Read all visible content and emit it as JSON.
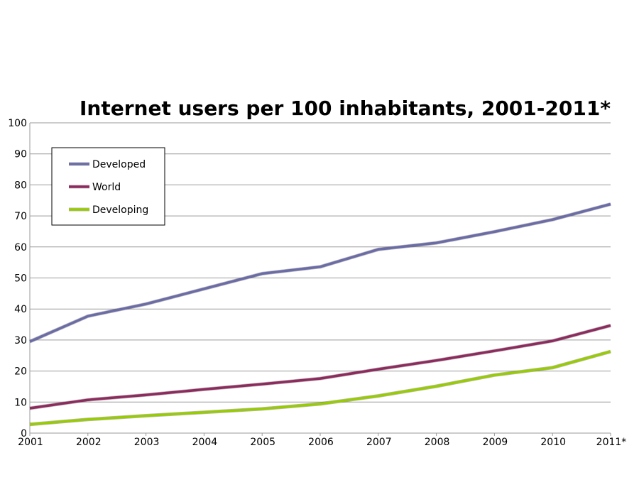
{
  "chart_data": {
    "type": "line",
    "title": "Internet users per 100 inhabitants, 2001-2011*",
    "xlabel": "",
    "ylabel": "",
    "categories": [
      "2001",
      "2002",
      "2003",
      "2004",
      "2005",
      "2006",
      "2007",
      "2008",
      "2009",
      "2010",
      "2011*"
    ],
    "ylim": [
      0,
      100
    ],
    "yticks": [
      "0",
      "10",
      "20",
      "30",
      "40",
      "50",
      "60",
      "70",
      "80",
      "90",
      "100"
    ],
    "grid": true,
    "legend_position": "top-left",
    "series": [
      {
        "name": "Developed",
        "color": "#6b6ba8",
        "values": [
          29.5,
          37.7,
          41.6,
          46.5,
          51.4,
          53.6,
          59.2,
          61.3,
          64.9,
          68.8,
          73.8
        ]
      },
      {
        "name": "World",
        "color": "#8e2a5e",
        "values": [
          8.0,
          10.7,
          12.3,
          14.1,
          15.8,
          17.6,
          20.6,
          23.4,
          26.5,
          29.7,
          34.7
        ]
      },
      {
        "name": "Developing",
        "color": "#99cc00",
        "values": [
          2.8,
          4.4,
          5.6,
          6.7,
          7.8,
          9.4,
          12.0,
          15.1,
          18.7,
          21.1,
          26.3
        ]
      }
    ]
  }
}
